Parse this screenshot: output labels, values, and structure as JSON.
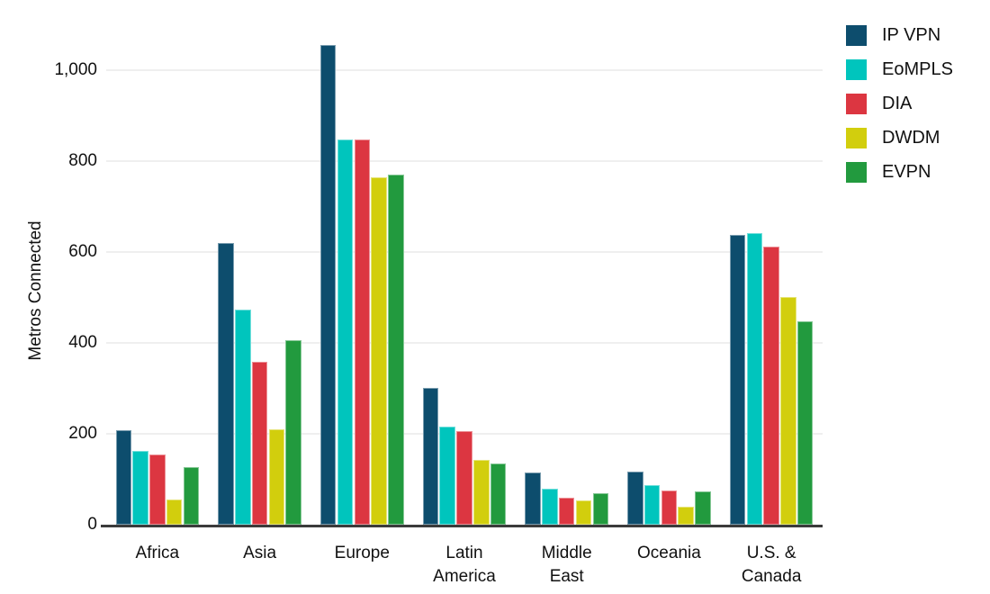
{
  "chart_data": {
    "type": "bar",
    "title": "",
    "xlabel": "",
    "ylabel": "Metros Connected",
    "categories": [
      [
        "Africa"
      ],
      [
        "Asia"
      ],
      [
        "Europe"
      ],
      [
        "Latin",
        "America"
      ],
      [
        "Middle",
        "East"
      ],
      [
        "Oceania"
      ],
      [
        "U.S. &",
        "Canada"
      ]
    ],
    "series": [
      {
        "name": "IP VPN",
        "color": "#0d4d6d",
        "values": [
          207,
          620,
          1055,
          300,
          115,
          116,
          638
        ]
      },
      {
        "name": "EoMPLS",
        "color": "#00c5bd",
        "values": [
          162,
          473,
          847,
          216,
          80,
          87,
          641
        ]
      },
      {
        "name": "DIA",
        "color": "#dc3641",
        "values": [
          155,
          358,
          847,
          206,
          59,
          75,
          612
        ]
      },
      {
        "name": "DWDM",
        "color": "#d2ce0d",
        "values": [
          55,
          210,
          765,
          143,
          54,
          39,
          500
        ]
      },
      {
        "name": "EVPN",
        "color": "#229a3e",
        "values": [
          126,
          406,
          770,
          135,
          69,
          73,
          447
        ]
      }
    ],
    "y_ticks": [
      {
        "label": "0",
        "value": 0
      },
      {
        "label": "200",
        "value": 200
      },
      {
        "label": "400",
        "value": 400
      },
      {
        "label": "600",
        "value": 600
      },
      {
        "label": "800",
        "value": 800
      },
      {
        "label": "1,000",
        "value": 1000
      }
    ],
    "ylim": [
      0,
      1120
    ],
    "grid": true,
    "legend_position": "top-right",
    "axis_line_color": "#3b3b3b",
    "gridline_color": "#efefef"
  }
}
